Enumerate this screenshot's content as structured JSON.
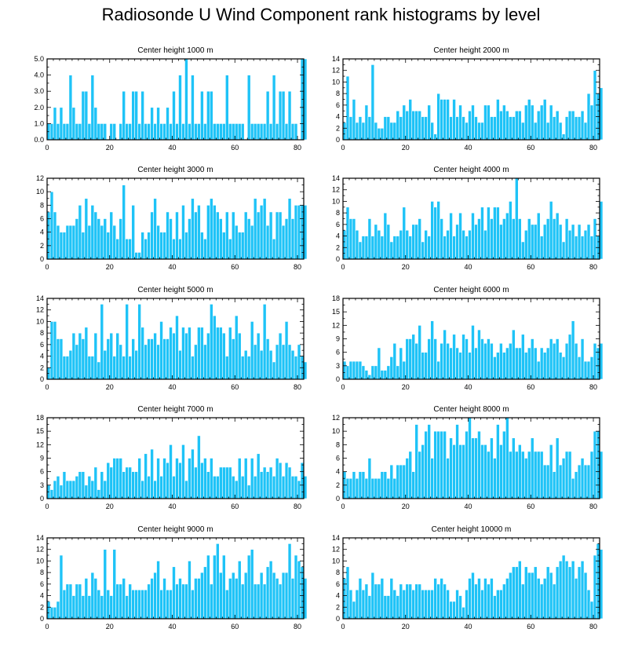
{
  "title": "Radiosonde U Wind Component rank histograms by level",
  "colors": {
    "bar": "#1ec3f7",
    "bar_edge": "#ffffff",
    "axis": "#000000"
  },
  "chart_data": [
    {
      "type": "bar",
      "title": "Center height 1000 m",
      "xlim": [
        0,
        82
      ],
      "ylim": [
        0,
        5
      ],
      "yticks": [
        0,
        1,
        2,
        3,
        4,
        5
      ],
      "yticklabels": [
        "0.0",
        "1.0",
        "2.0",
        "3.0",
        "4.0",
        "5.0"
      ],
      "xticks": [
        0,
        20,
        40,
        60,
        80
      ],
      "values": [
        1,
        1,
        2,
        1,
        2,
        1,
        1,
        4,
        2,
        1,
        1,
        3,
        3,
        1,
        4,
        2,
        1,
        1,
        1,
        0,
        1,
        1,
        0,
        1,
        3,
        1,
        1,
        3,
        3,
        1,
        3,
        1,
        1,
        2,
        1,
        2,
        1,
        1,
        2,
        1,
        3,
        1,
        4,
        1,
        5,
        1,
        4,
        1,
        1,
        3,
        1,
        3,
        3,
        1,
        1,
        1,
        1,
        4,
        1,
        1,
        1,
        1,
        1,
        0,
        4,
        1,
        1,
        1,
        1,
        1,
        3,
        1,
        4,
        1,
        3,
        3,
        1,
        3,
        1,
        1,
        0,
        5,
        5
      ]
    },
    {
      "type": "bar",
      "title": "Center height 2000 m",
      "xlim": [
        0,
        82
      ],
      "ylim": [
        0,
        14
      ],
      "yticks": [
        0,
        2,
        4,
        6,
        8,
        10,
        12,
        14
      ],
      "yticklabels": [
        "0",
        "2",
        "4",
        "6",
        "8",
        "10",
        "12",
        "14"
      ],
      "xticks": [
        0,
        20,
        40,
        60,
        80
      ],
      "values": [
        3,
        11,
        4,
        7,
        3,
        4,
        3,
        6,
        4,
        13,
        3,
        2,
        2,
        4,
        4,
        3,
        3,
        5,
        4,
        6,
        5,
        7,
        5,
        5,
        5,
        4,
        4,
        6,
        3,
        1,
        8,
        7,
        7,
        7,
        4,
        7,
        4,
        6,
        4,
        3,
        5,
        6,
        4,
        3,
        3,
        6,
        6,
        4,
        4,
        7,
        5,
        6,
        5,
        4,
        4,
        5,
        5,
        3,
        6,
        7,
        6,
        3,
        5,
        6,
        7,
        3,
        6,
        4,
        5,
        3,
        1,
        4,
        5,
        5,
        4,
        4,
        5,
        3,
        8,
        6,
        12,
        8,
        9
      ]
    },
    {
      "type": "bar",
      "title": "Center height 3000 m",
      "xlim": [
        0,
        82
      ],
      "ylim": [
        0,
        12
      ],
      "yticks": [
        0,
        2,
        4,
        6,
        8,
        10,
        12
      ],
      "yticklabels": [
        "0",
        "2",
        "4",
        "6",
        "8",
        "10",
        "12"
      ],
      "xticks": [
        0,
        20,
        40,
        60,
        80
      ],
      "values": [
        7,
        10,
        7,
        5,
        4,
        4,
        5,
        5,
        5,
        6,
        8,
        4,
        9,
        5,
        8,
        7,
        6,
        5,
        6,
        4,
        7,
        5,
        3,
        6,
        11,
        3,
        3,
        8,
        1,
        1,
        4,
        3,
        4,
        7,
        9,
        5,
        4,
        4,
        7,
        6,
        3,
        7,
        3,
        8,
        4,
        6,
        9,
        7,
        8,
        4,
        3,
        8,
        9,
        8,
        7,
        6,
        4,
        7,
        3,
        7,
        5,
        4,
        4,
        7,
        6,
        5,
        9,
        7,
        8,
        9,
        5,
        7,
        3,
        7,
        7,
        5,
        6,
        9,
        6,
        8,
        8,
        8,
        8
      ]
    },
    {
      "type": "bar",
      "title": "Center height 4000 m",
      "xlim": [
        0,
        82
      ],
      "ylim": [
        0,
        14
      ],
      "yticks": [
        0,
        2,
        4,
        6,
        8,
        10,
        12,
        14
      ],
      "yticklabels": [
        "0",
        "2",
        "4",
        "6",
        "8",
        "10",
        "12",
        "14"
      ],
      "xticks": [
        0,
        20,
        40,
        60,
        80
      ],
      "values": [
        5,
        9,
        7,
        7,
        5,
        3,
        4,
        4,
        7,
        4,
        6,
        5,
        4,
        8,
        6,
        3,
        4,
        4,
        5,
        9,
        5,
        4,
        6,
        6,
        7,
        3,
        5,
        4,
        10,
        9,
        10,
        7,
        4,
        5,
        8,
        4,
        6,
        8,
        5,
        4,
        5,
        8,
        6,
        7,
        9,
        5,
        9,
        7,
        9,
        9,
        6,
        7,
        8,
        10,
        7,
        14,
        7,
        3,
        5,
        7,
        6,
        6,
        8,
        4,
        6,
        7,
        10,
        7,
        8,
        6,
        3,
        7,
        5,
        6,
        4,
        6,
        4,
        5,
        6,
        4,
        7,
        4,
        10
      ]
    },
    {
      "type": "bar",
      "title": "Center height 5000 m",
      "xlim": [
        0,
        82
      ],
      "ylim": [
        0,
        14
      ],
      "yticks": [
        0,
        2,
        4,
        6,
        8,
        10,
        12,
        14
      ],
      "yticklabels": [
        "0",
        "2",
        "4",
        "6",
        "8",
        "10",
        "12",
        "14"
      ],
      "xticks": [
        0,
        20,
        40,
        60,
        80
      ],
      "values": [
        2,
        10,
        10,
        7,
        7,
        4,
        4,
        5,
        8,
        6,
        8,
        7,
        9,
        4,
        4,
        8,
        3,
        13,
        5,
        7,
        8,
        4,
        8,
        6,
        4,
        13,
        4,
        7,
        5,
        13,
        9,
        6,
        7,
        7,
        8,
        6,
        10,
        7,
        7,
        9,
        8,
        11,
        5,
        9,
        8,
        9,
        4,
        6,
        9,
        9,
        6,
        8,
        13,
        11,
        9,
        9,
        8,
        4,
        9,
        7,
        11,
        8,
        4,
        5,
        4,
        10,
        6,
        8,
        5,
        13,
        7,
        5,
        3,
        6,
        8,
        6,
        10,
        6,
        5,
        4,
        6,
        4,
        3
      ]
    },
    {
      "type": "bar",
      "title": "Center height 6000 m",
      "xlim": [
        0,
        82
      ],
      "ylim": [
        0,
        18
      ],
      "yticks": [
        0,
        3,
        6,
        9,
        12,
        15,
        18
      ],
      "yticklabels": [
        "0",
        "3",
        "6",
        "9",
        "12",
        "15",
        "18"
      ],
      "xticks": [
        0,
        20,
        40,
        60,
        80
      ],
      "values": [
        4,
        3,
        4,
        4,
        4,
        4,
        3,
        2,
        1,
        3,
        3,
        7,
        2,
        2,
        3,
        5,
        8,
        3,
        7,
        4,
        9,
        9,
        10,
        8,
        12,
        6,
        6,
        9,
        13,
        9,
        4,
        8,
        11,
        8,
        7,
        10,
        7,
        6,
        10,
        9,
        6,
        12,
        7,
        11,
        9,
        8,
        9,
        8,
        5,
        6,
        8,
        6,
        7,
        8,
        11,
        7,
        7,
        10,
        6,
        7,
        9,
        7,
        4,
        7,
        6,
        7,
        9,
        8,
        9,
        6,
        5,
        8,
        10,
        13,
        8,
        5,
        9,
        4,
        4,
        5,
        8,
        7,
        8
      ]
    },
    {
      "type": "bar",
      "title": "Center height 7000 m",
      "xlim": [
        0,
        82
      ],
      "ylim": [
        0,
        18
      ],
      "yticks": [
        0,
        3,
        6,
        9,
        12,
        15,
        18
      ],
      "yticklabels": [
        "0",
        "3",
        "6",
        "9",
        "12",
        "15",
        "18"
      ],
      "xticks": [
        0,
        20,
        40,
        60,
        80
      ],
      "values": [
        3,
        2,
        4,
        5,
        3,
        6,
        4,
        4,
        4,
        5,
        6,
        6,
        3,
        5,
        4,
        7,
        2,
        6,
        4,
        8,
        7,
        9,
        9,
        9,
        6,
        7,
        7,
        6,
        6,
        9,
        4,
        10,
        5,
        11,
        4,
        9,
        5,
        9,
        8,
        12,
        5,
        9,
        8,
        12,
        4,
        9,
        11,
        7,
        14,
        8,
        9,
        6,
        9,
        5,
        5,
        7,
        7,
        7,
        7,
        5,
        4,
        9,
        5,
        9,
        3,
        9,
        5,
        10,
        6,
        7,
        6,
        7,
        5,
        9,
        8,
        5,
        8,
        7,
        5,
        5,
        4,
        8,
        5
      ]
    },
    {
      "type": "bar",
      "title": "Center height 8000 m",
      "xlim": [
        0,
        82
      ],
      "ylim": [
        0,
        12
      ],
      "yticks": [
        0,
        2,
        4,
        6,
        8,
        10,
        12
      ],
      "yticklabels": [
        "0",
        "2",
        "4",
        "6",
        "8",
        "10",
        "12"
      ],
      "xticks": [
        0,
        20,
        40,
        60,
        80
      ],
      "values": [
        4,
        3,
        3,
        4,
        3,
        4,
        4,
        3,
        6,
        3,
        3,
        3,
        4,
        4,
        3,
        5,
        3,
        5,
        5,
        5,
        6,
        7,
        4,
        11,
        7,
        8,
        10,
        11,
        6,
        10,
        10,
        10,
        10,
        6,
        9,
        8,
        11,
        8,
        8,
        10,
        12,
        9,
        9,
        10,
        8,
        8,
        7,
        9,
        6,
        11,
        8,
        10,
        12,
        7,
        9,
        7,
        8,
        7,
        6,
        7,
        9,
        7,
        7,
        7,
        5,
        5,
        8,
        4,
        9,
        5,
        6,
        7,
        7,
        3,
        4,
        5,
        6,
        5,
        5,
        7,
        10,
        10,
        7
      ]
    },
    {
      "type": "bar",
      "title": "Center height 9000 m",
      "xlim": [
        0,
        82
      ],
      "ylim": [
        0,
        14
      ],
      "yticks": [
        0,
        2,
        4,
        6,
        8,
        10,
        12,
        14
      ],
      "yticklabels": [
        "0",
        "2",
        "4",
        "6",
        "8",
        "10",
        "12",
        "14"
      ],
      "xticks": [
        0,
        20,
        40,
        60,
        80
      ],
      "values": [
        3,
        2,
        2,
        3,
        11,
        5,
        6,
        6,
        4,
        6,
        6,
        4,
        7,
        4,
        8,
        7,
        5,
        4,
        12,
        5,
        4,
        12,
        6,
        6,
        7,
        4,
        6,
        5,
        5,
        5,
        5,
        5,
        6,
        7,
        8,
        10,
        5,
        7,
        5,
        5,
        9,
        6,
        7,
        6,
        6,
        10,
        5,
        7,
        7,
        8,
        9,
        11,
        6,
        11,
        13,
        8,
        11,
        5,
        7,
        8,
        7,
        10,
        6,
        8,
        11,
        12,
        6,
        6,
        8,
        6,
        9,
        10,
        8,
        7,
        6,
        8,
        8,
        13,
        7,
        11,
        10,
        9,
        7
      ]
    },
    {
      "type": "bar",
      "title": "Center height 10000 m",
      "xlim": [
        0,
        82
      ],
      "ylim": [
        0,
        14
      ],
      "yticks": [
        0,
        2,
        4,
        6,
        8,
        10,
        12,
        14
      ],
      "yticklabels": [
        "0",
        "2",
        "4",
        "6",
        "8",
        "10",
        "12",
        "14"
      ],
      "xticks": [
        0,
        20,
        40,
        60,
        80
      ],
      "values": [
        7,
        9,
        5,
        3,
        5,
        7,
        5,
        6,
        4,
        8,
        6,
        6,
        7,
        4,
        4,
        7,
        5,
        4,
        6,
        5,
        6,
        6,
        5,
        6,
        6,
        5,
        5,
        5,
        5,
        7,
        6,
        7,
        6,
        5,
        3,
        3,
        5,
        4,
        2,
        5,
        7,
        8,
        6,
        7,
        5,
        7,
        6,
        7,
        4,
        5,
        5,
        6,
        7,
        8,
        9,
        9,
        10,
        6,
        9,
        8,
        8,
        9,
        7,
        6,
        7,
        9,
        8,
        6,
        9,
        10,
        11,
        10,
        9,
        10,
        7,
        9,
        10,
        8,
        5,
        3,
        11,
        13,
        12
      ]
    }
  ]
}
